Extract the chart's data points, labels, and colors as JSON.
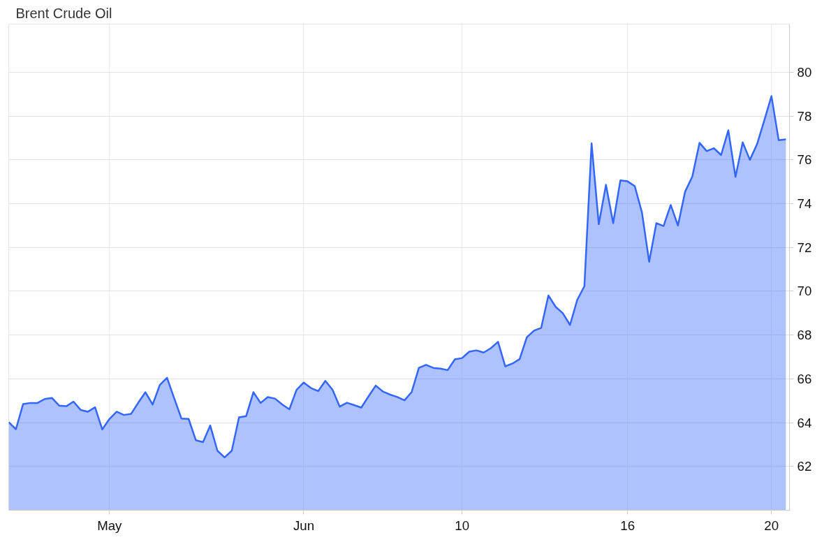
{
  "chart_data": {
    "type": "area",
    "title": "Brent Crude Oil",
    "categories": [
      null,
      null,
      null,
      null,
      null,
      null,
      null,
      null,
      null,
      null,
      null,
      null,
      null,
      null,
      "May",
      null,
      null,
      null,
      null,
      null,
      null,
      null,
      null,
      null,
      null,
      null,
      null,
      null,
      null,
      null,
      null,
      null,
      null,
      null,
      null,
      null,
      null,
      null,
      null,
      null,
      null,
      "Jun",
      null,
      null,
      null,
      null,
      null,
      null,
      null,
      null,
      null,
      null,
      null,
      null,
      null,
      null,
      null,
      null,
      null,
      null,
      null,
      null,
      null,
      "10",
      null,
      null,
      null,
      null,
      null,
      null,
      null,
      null,
      null,
      null,
      null,
      null,
      null,
      null,
      null,
      null,
      null,
      null,
      null,
      null,
      null,
      null,
      "16",
      null,
      null,
      null,
      null,
      null,
      null,
      null,
      null,
      null,
      null,
      null,
      null,
      null,
      null,
      null,
      null,
      null,
      null,
      null,
      "20",
      null,
      null
    ],
    "series": [
      {
        "color": "#3366ff",
        "values": [
          64.02,
          63.7,
          64.85,
          64.9,
          64.9,
          65.08,
          65.13,
          64.78,
          64.75,
          64.96,
          64.58,
          64.5,
          64.7,
          63.69,
          64.17,
          64.5,
          64.35,
          64.4,
          64.91,
          65.39,
          64.83,
          65.72,
          66.05,
          65.11,
          64.19,
          64.17,
          63.2,
          63.11,
          63.87,
          62.72,
          62.41,
          62.72,
          64.24,
          64.3,
          65.39,
          64.9,
          65.17,
          65.1,
          64.83,
          64.61,
          65.5,
          65.83,
          65.58,
          65.44,
          65.91,
          65.5,
          64.73,
          64.91,
          64.8,
          64.69,
          65.2,
          65.69,
          65.42,
          65.28,
          65.17,
          65.02,
          65.4,
          66.5,
          66.64,
          66.5,
          66.47,
          66.4,
          66.89,
          66.95,
          67.24,
          67.3,
          67.2,
          67.4,
          67.69,
          66.57,
          66.7,
          66.9,
          67.9,
          68.2,
          68.33,
          69.81,
          69.29,
          69.0,
          68.46,
          69.6,
          70.23,
          76.75,
          73.06,
          74.86,
          73.11,
          75.06,
          75.02,
          74.8,
          73.6,
          71.35,
          73.11,
          72.98,
          73.94,
          73.0,
          74.55,
          75.24,
          76.78,
          76.4,
          76.53,
          76.22,
          77.35,
          75.22,
          76.8,
          76.0,
          76.72,
          77.8,
          78.91,
          76.9,
          76.94
        ]
      }
    ],
    "ylim": [
      60,
      82.2
    ],
    "yticks": [
      62,
      64,
      66,
      68,
      70,
      72,
      74,
      76,
      78,
      80
    ],
    "grid": true
  }
}
